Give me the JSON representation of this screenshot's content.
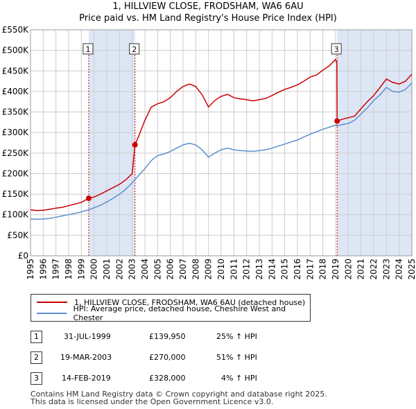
{
  "title_line1": "1, HILLVIEW CLOSE, FRODSHAM, WA6 6AU",
  "title_line2": "Price paid vs. HM Land Registry's House Price Index (HPI)",
  "colors": {
    "price": "#cc0000",
    "hpi": "#5b8fcf",
    "shade": "#dde6f5",
    "grid": "#cccccc",
    "sale_line": "#cc0000"
  },
  "chart_data": {
    "type": "line",
    "x_range": [
      1995,
      2025
    ],
    "ylim": [
      0,
      550000
    ],
    "y_ticks": [
      {
        "value": 0,
        "label": "£0"
      },
      {
        "value": 50000,
        "label": "£50K"
      },
      {
        "value": 100000,
        "label": "£100K"
      },
      {
        "value": 150000,
        "label": "£150K"
      },
      {
        "value": 200000,
        "label": "£200K"
      },
      {
        "value": 250000,
        "label": "£250K"
      },
      {
        "value": 300000,
        "label": "£300K"
      },
      {
        "value": 350000,
        "label": "£350K"
      },
      {
        "value": 400000,
        "label": "£400K"
      },
      {
        "value": 450000,
        "label": "£450K"
      },
      {
        "value": 500000,
        "label": "£500K"
      },
      {
        "value": 550000,
        "label": "£550K"
      }
    ],
    "x_ticks": [
      "1995",
      "1996",
      "1997",
      "1998",
      "1999",
      "2000",
      "2001",
      "2002",
      "2003",
      "2004",
      "2005",
      "2006",
      "2007",
      "2008",
      "2009",
      "2010",
      "2011",
      "2012",
      "2013",
      "2014",
      "2015",
      "2016",
      "2017",
      "2018",
      "2019",
      "2020",
      "2021",
      "2022",
      "2023",
      "2024",
      "2025"
    ],
    "series": [
      {
        "name": "1, HILLVIEW CLOSE, FRODSHAM, WA6 6AU (detached house)",
        "points": [
          [
            1995.0,
            112000
          ],
          [
            1995.5,
            110000
          ],
          [
            1996.0,
            111000
          ],
          [
            1996.5,
            113000
          ],
          [
            1997.0,
            116000
          ],
          [
            1997.5,
            118000
          ],
          [
            1998.0,
            122000
          ],
          [
            1998.5,
            126000
          ],
          [
            1999.0,
            130000
          ],
          [
            1999.58,
            139950
          ],
          [
            2000.0,
            143000
          ],
          [
            2000.5,
            150000
          ],
          [
            2001.0,
            158000
          ],
          [
            2001.5,
            166000
          ],
          [
            2002.0,
            174000
          ],
          [
            2002.5,
            185000
          ],
          [
            2003.0,
            200000
          ],
          [
            2003.22,
            270000
          ],
          [
            2003.5,
            290000
          ],
          [
            2004.0,
            330000
          ],
          [
            2004.5,
            362000
          ],
          [
            2005.0,
            370000
          ],
          [
            2005.5,
            375000
          ],
          [
            2006.0,
            385000
          ],
          [
            2006.5,
            400000
          ],
          [
            2007.0,
            412000
          ],
          [
            2007.5,
            418000
          ],
          [
            2008.0,
            412000
          ],
          [
            2008.5,
            392000
          ],
          [
            2009.0,
            362000
          ],
          [
            2009.5,
            378000
          ],
          [
            2010.0,
            388000
          ],
          [
            2010.5,
            393000
          ],
          [
            2011.0,
            385000
          ],
          [
            2011.5,
            382000
          ],
          [
            2012.0,
            380000
          ],
          [
            2012.5,
            377000
          ],
          [
            2013.0,
            380000
          ],
          [
            2013.5,
            383000
          ],
          [
            2014.0,
            390000
          ],
          [
            2014.5,
            398000
          ],
          [
            2015.0,
            405000
          ],
          [
            2015.5,
            410000
          ],
          [
            2016.0,
            416000
          ],
          [
            2016.5,
            425000
          ],
          [
            2017.0,
            435000
          ],
          [
            2017.5,
            440000
          ],
          [
            2018.0,
            452000
          ],
          [
            2018.5,
            462000
          ],
          [
            2019.0,
            478000
          ],
          [
            2019.1,
            470000
          ],
          [
            2019.12,
            328000
          ],
          [
            2019.5,
            332000
          ],
          [
            2020.0,
            336000
          ],
          [
            2020.5,
            340000
          ],
          [
            2021.0,
            358000
          ],
          [
            2021.5,
            375000
          ],
          [
            2022.0,
            390000
          ],
          [
            2022.5,
            410000
          ],
          [
            2023.0,
            430000
          ],
          [
            2023.5,
            422000
          ],
          [
            2024.0,
            418000
          ],
          [
            2024.5,
            425000
          ],
          [
            2025.0,
            442000
          ]
        ]
      },
      {
        "name": "HPI: Average price, detached house, Cheshire West and Chester",
        "points": [
          [
            1995.0,
            90000
          ],
          [
            1995.5,
            89000
          ],
          [
            1996.0,
            89500
          ],
          [
            1996.5,
            91000
          ],
          [
            1997.0,
            94000
          ],
          [
            1997.5,
            97000
          ],
          [
            1998.0,
            100000
          ],
          [
            1998.5,
            103000
          ],
          [
            1999.0,
            107000
          ],
          [
            1999.58,
            112000
          ],
          [
            2000.0,
            117000
          ],
          [
            2000.5,
            123000
          ],
          [
            2001.0,
            131000
          ],
          [
            2001.5,
            140000
          ],
          [
            2002.0,
            150000
          ],
          [
            2002.5,
            162000
          ],
          [
            2003.0,
            178000
          ],
          [
            2003.5,
            195000
          ],
          [
            2004.0,
            212000
          ],
          [
            2004.5,
            232000
          ],
          [
            2005.0,
            244000
          ],
          [
            2005.5,
            248000
          ],
          [
            2006.0,
            254000
          ],
          [
            2006.5,
            262000
          ],
          [
            2007.0,
            270000
          ],
          [
            2007.5,
            274000
          ],
          [
            2008.0,
            270000
          ],
          [
            2008.5,
            258000
          ],
          [
            2009.0,
            240000
          ],
          [
            2009.5,
            250000
          ],
          [
            2010.0,
            258000
          ],
          [
            2010.5,
            262000
          ],
          [
            2011.0,
            258000
          ],
          [
            2011.5,
            256000
          ],
          [
            2012.0,
            255000
          ],
          [
            2012.5,
            254000
          ],
          [
            2013.0,
            256000
          ],
          [
            2013.5,
            258000
          ],
          [
            2014.0,
            262000
          ],
          [
            2014.5,
            267000
          ],
          [
            2015.0,
            272000
          ],
          [
            2015.5,
            277000
          ],
          [
            2016.0,
            282000
          ],
          [
            2016.5,
            289000
          ],
          [
            2017.0,
            296000
          ],
          [
            2017.5,
            302000
          ],
          [
            2018.0,
            308000
          ],
          [
            2018.5,
            313000
          ],
          [
            2019.0,
            318000
          ],
          [
            2019.12,
            316000
          ],
          [
            2019.5,
            319000
          ],
          [
            2020.0,
            322000
          ],
          [
            2020.5,
            330000
          ],
          [
            2021.0,
            345000
          ],
          [
            2021.5,
            360000
          ],
          [
            2022.0,
            378000
          ],
          [
            2022.5,
            392000
          ],
          [
            2023.0,
            410000
          ],
          [
            2023.5,
            400000
          ],
          [
            2024.0,
            398000
          ],
          [
            2024.5,
            405000
          ],
          [
            2025.0,
            420000
          ]
        ]
      }
    ],
    "sales": [
      {
        "label": "1",
        "x": 1999.58,
        "price": 139950
      },
      {
        "label": "2",
        "x": 2003.22,
        "price": 270000
      },
      {
        "label": "3",
        "x": 2019.12,
        "price": 328000
      }
    ]
  },
  "legend": {
    "price_label": "1, HILLVIEW CLOSE, FRODSHAM, WA6 6AU (detached house)",
    "hpi_label": "HPI: Average price, detached house, Cheshire West and Chester"
  },
  "table": [
    {
      "num": "1",
      "date": "31-JUL-1999",
      "price": "£139,950",
      "hpi": "25% ↑ HPI"
    },
    {
      "num": "2",
      "date": "19-MAR-2003",
      "price": "£270,000",
      "hpi": "51% ↑ HPI"
    },
    {
      "num": "3",
      "date": "14-FEB-2019",
      "price": "£328,000",
      "hpi": "4% ↑ HPI"
    }
  ],
  "footer": {
    "line1": "Contains HM Land Registry data © Crown copyright and database right 2025.",
    "line2": "This data is licensed under the Open Government Licence v3.0."
  }
}
